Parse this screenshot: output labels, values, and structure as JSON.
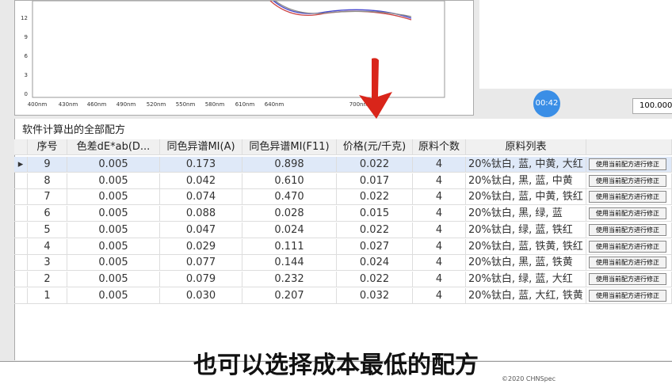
{
  "chart": {
    "yticks": [
      "12",
      "9",
      "6",
      "3",
      "0"
    ],
    "xticks": [
      "400nm",
      "430nm",
      "460nm",
      "490nm",
      "520nm",
      "550nm",
      "580nm",
      "610nm",
      "640nm",
      "700nm"
    ]
  },
  "timer": "00:42",
  "input_value": "100.000",
  "section_title": "软件计算出的全部配方",
  "table": {
    "headers": [
      "序号",
      "色差dE*ab(D...",
      "同色异谱MI(A)",
      "同色异谱MI(F11)",
      "价格(元/千克)",
      "原料个数",
      "原料列表"
    ],
    "rows": [
      [
        "9",
        "0.005",
        "0.173",
        "0.898",
        "0.022",
        "4",
        "20%钛白, 蓝, 中黄, 大红"
      ],
      [
        "8",
        "0.005",
        "0.042",
        "0.610",
        "0.017",
        "4",
        "20%钛白, 黑, 蓝, 中黄"
      ],
      [
        "7",
        "0.005",
        "0.074",
        "0.470",
        "0.022",
        "4",
        "20%钛白, 蓝, 中黄, 铁红"
      ],
      [
        "6",
        "0.005",
        "0.088",
        "0.028",
        "0.015",
        "4",
        "20%钛白, 黑, 绿, 蓝"
      ],
      [
        "5",
        "0.005",
        "0.047",
        "0.024",
        "0.022",
        "4",
        "20%钛白, 绿, 蓝, 铁红"
      ],
      [
        "4",
        "0.005",
        "0.029",
        "0.111",
        "0.027",
        "4",
        "20%钛白, 蓝, 铁黄, 铁红"
      ],
      [
        "3",
        "0.005",
        "0.077",
        "0.144",
        "0.024",
        "4",
        "20%钛白, 黑, 蓝, 铁黄"
      ],
      [
        "2",
        "0.005",
        "0.079",
        "0.232",
        "0.022",
        "4",
        "20%钛白, 绿, 蓝, 大红"
      ],
      [
        "1",
        "0.005",
        "0.030",
        "0.207",
        "0.032",
        "4",
        "20%钛白, 蓝, 大红, 铁黄"
      ]
    ],
    "button_label": "使用当前配方进行修正"
  },
  "caption": "也可以选择成本最低的配方",
  "footer": "©2020 CHNSpec"
}
